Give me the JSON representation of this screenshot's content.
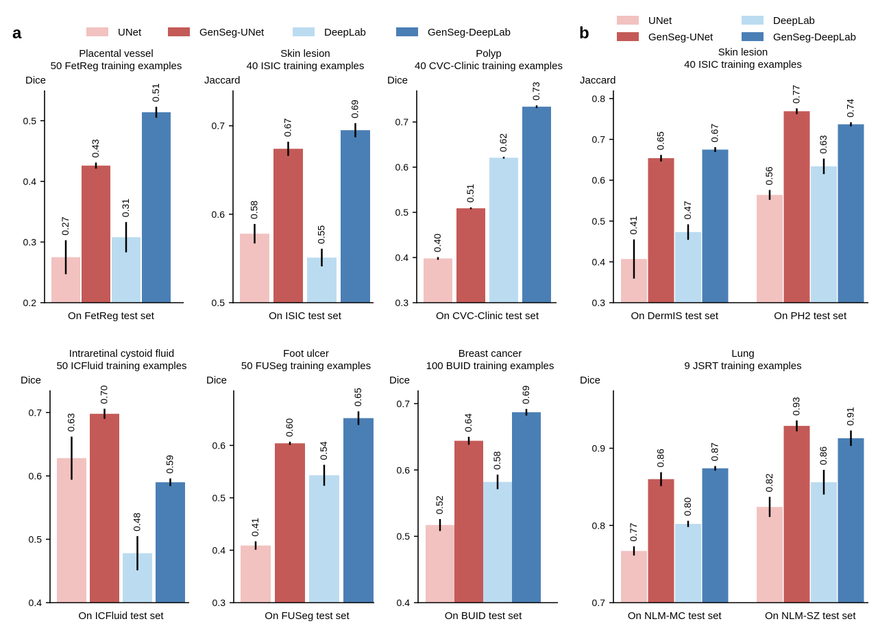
{
  "colors": {
    "UNet": "#f2c2c0",
    "GenSeg-UNet": "#c45a57",
    "DeepLab": "#bbdcf0",
    "GenSeg-DeepLab": "#4a7fb5",
    "axis": "#000000",
    "errorbar": "#000000"
  },
  "panel_letters": [
    "a",
    "b"
  ],
  "legends": [
    {
      "panel": "a",
      "layout": "single-row",
      "entries": [
        "UNet",
        "GenSeg-UNet",
        "DeepLab",
        "GenSeg-DeepLab"
      ]
    },
    {
      "panel": "b",
      "layout": "two-columns",
      "entries": [
        "UNet",
        "GenSeg-UNet",
        "DeepLab",
        "GenSeg-DeepLab"
      ]
    }
  ],
  "chart_data": [
    {
      "type": "bar",
      "title": "Placental vessel\n50 FetReg training examples",
      "ylabel": "Dice",
      "ylim": [
        0.2,
        0.55
      ],
      "yticks": [
        0.2,
        0.3,
        0.4,
        0.5
      ],
      "groups": [
        {
          "xlabel": "On FetReg test set",
          "bars": [
            {
              "series": "UNet",
              "value": 0.275,
              "err": 0.028,
              "label": "0.27"
            },
            {
              "series": "GenSeg-UNet",
              "value": 0.426,
              "err": 0.005,
              "label": "0.43"
            },
            {
              "series": "DeepLab",
              "value": 0.308,
              "err": 0.025,
              "label": "0.31"
            },
            {
              "series": "GenSeg-DeepLab",
              "value": 0.514,
              "err": 0.009,
              "label": "0.51"
            }
          ]
        }
      ]
    },
    {
      "type": "bar",
      "title": "Skin lesion\n40 ISIC training examples",
      "ylabel": "Jaccard",
      "ylim": [
        0.5,
        0.74
      ],
      "yticks": [
        0.5,
        0.6,
        0.7
      ],
      "groups": [
        {
          "xlabel": "On ISIC test set",
          "bars": [
            {
              "series": "UNet",
              "value": 0.578,
              "err": 0.011,
              "label": "0.58"
            },
            {
              "series": "GenSeg-UNet",
              "value": 0.674,
              "err": 0.008,
              "label": "0.67"
            },
            {
              "series": "DeepLab",
              "value": 0.551,
              "err": 0.01,
              "label": "0.55"
            },
            {
              "series": "GenSeg-DeepLab",
              "value": 0.695,
              "err": 0.008,
              "label": "0.69"
            }
          ]
        }
      ]
    },
    {
      "type": "bar",
      "title": "Polyp\n40 CVC-Clinic training examples",
      "ylabel": "Dice",
      "ylim": [
        0.3,
        0.77
      ],
      "yticks": [
        0.3,
        0.4,
        0.5,
        0.6,
        0.7
      ],
      "groups": [
        {
          "xlabel": "On CVC-Clinic test set",
          "bars": [
            {
              "series": "UNet",
              "value": 0.398,
              "err": 0.003,
              "label": "0.40"
            },
            {
              "series": "GenSeg-UNet",
              "value": 0.509,
              "err": 0.002,
              "label": "0.51"
            },
            {
              "series": "DeepLab",
              "value": 0.621,
              "err": 0.002,
              "label": "0.62"
            },
            {
              "series": "GenSeg-DeepLab",
              "value": 0.734,
              "err": 0.003,
              "label": "0.73"
            }
          ]
        }
      ]
    },
    {
      "type": "bar",
      "title": "Skin lesion\n40 ISIC training examples",
      "ylabel": "Jaccard",
      "ylim": [
        0.3,
        0.82
      ],
      "yticks": [
        0.3,
        0.4,
        0.5,
        0.6,
        0.7,
        0.8
      ],
      "groups": [
        {
          "xlabel": "On DermIS test set",
          "bars": [
            {
              "series": "UNet",
              "value": 0.407,
              "err": 0.048,
              "label": "0.41"
            },
            {
              "series": "GenSeg-UNet",
              "value": 0.654,
              "err": 0.008,
              "label": "0.65"
            },
            {
              "series": "DeepLab",
              "value": 0.473,
              "err": 0.019,
              "label": "0.47"
            },
            {
              "series": "GenSeg-DeepLab",
              "value": 0.675,
              "err": 0.006,
              "label": "0.67"
            }
          ]
        },
        {
          "xlabel": "On PH2 test set",
          "bars": [
            {
              "series": "UNet",
              "value": 0.564,
              "err": 0.012,
              "label": "0.56"
            },
            {
              "series": "GenSeg-UNet",
              "value": 0.769,
              "err": 0.007,
              "label": "0.77"
            },
            {
              "series": "DeepLab",
              "value": 0.634,
              "err": 0.019,
              "label": "0.63"
            },
            {
              "series": "GenSeg-DeepLab",
              "value": 0.737,
              "err": 0.005,
              "label": "0.74"
            }
          ]
        }
      ]
    },
    {
      "type": "bar",
      "title": "Intraretinal cystoid fluid\n50 ICFluid training examples",
      "ylabel": "Dice",
      "ylim": [
        0.4,
        0.735
      ],
      "yticks": [
        0.4,
        0.5,
        0.6,
        0.7
      ],
      "groups": [
        {
          "xlabel": "On ICFluid test set",
          "bars": [
            {
              "series": "UNet",
              "value": 0.628,
              "err": 0.034,
              "label": "0.63"
            },
            {
              "series": "GenSeg-UNet",
              "value": 0.698,
              "err": 0.008,
              "label": "0.70"
            },
            {
              "series": "DeepLab",
              "value": 0.478,
              "err": 0.027,
              "label": "0.48"
            },
            {
              "series": "GenSeg-DeepLab",
              "value": 0.59,
              "err": 0.006,
              "label": "0.59"
            }
          ]
        }
      ]
    },
    {
      "type": "bar",
      "title": "Foot ulcer\n50 FUSeg training examples",
      "ylabel": "Dice",
      "ylim": [
        0.3,
        0.705
      ],
      "yticks": [
        0.3,
        0.4,
        0.5,
        0.6
      ],
      "groups": [
        {
          "xlabel": "On FUSeg test set",
          "bars": [
            {
              "series": "UNet",
              "value": 0.409,
              "err": 0.008,
              "label": "0.41"
            },
            {
              "series": "GenSeg-UNet",
              "value": 0.604,
              "err": 0.003,
              "label": "0.60"
            },
            {
              "series": "DeepLab",
              "value": 0.543,
              "err": 0.02,
              "label": "0.54"
            },
            {
              "series": "GenSeg-DeepLab",
              "value": 0.652,
              "err": 0.013,
              "label": "0.65"
            }
          ]
        }
      ]
    },
    {
      "type": "bar",
      "title": "Breast cancer\n100 BUID training examples",
      "ylabel": "Dice",
      "ylim": [
        0.4,
        0.72
      ],
      "yticks": [
        0.4,
        0.5,
        0.6,
        0.7
      ],
      "groups": [
        {
          "xlabel": "On BUID test set",
          "bars": [
            {
              "series": "UNet",
              "value": 0.517,
              "err": 0.009,
              "label": "0.52"
            },
            {
              "series": "GenSeg-UNet",
              "value": 0.644,
              "err": 0.006,
              "label": "0.64"
            },
            {
              "series": "DeepLab",
              "value": 0.582,
              "err": 0.011,
              "label": "0.58"
            },
            {
              "series": "GenSeg-DeepLab",
              "value": 0.687,
              "err": 0.005,
              "label": "0.69"
            }
          ]
        }
      ]
    },
    {
      "type": "bar",
      "title": "Lung\n9 JSRT training examples",
      "ylabel": "Dice",
      "ylim": [
        0.7,
        0.975
      ],
      "yticks": [
        0.7,
        0.8,
        0.9
      ],
      "groups": [
        {
          "xlabel": "On NLM-MC test set",
          "bars": [
            {
              "series": "UNet",
              "value": 0.767,
              "err": 0.006,
              "label": "0.77"
            },
            {
              "series": "GenSeg-UNet",
              "value": 0.86,
              "err": 0.009,
              "label": "0.86"
            },
            {
              "series": "DeepLab",
              "value": 0.802,
              "err": 0.004,
              "label": "0.80"
            },
            {
              "series": "GenSeg-DeepLab",
              "value": 0.874,
              "err": 0.003,
              "label": "0.87"
            }
          ]
        },
        {
          "xlabel": "On NLM-SZ test set",
          "bars": [
            {
              "series": "UNet",
              "value": 0.824,
              "err": 0.013,
              "label": "0.82"
            },
            {
              "series": "GenSeg-UNet",
              "value": 0.929,
              "err": 0.007,
              "label": "0.93"
            },
            {
              "series": "DeepLab",
              "value": 0.856,
              "err": 0.016,
              "label": "0.86"
            },
            {
              "series": "GenSeg-DeepLab",
              "value": 0.913,
              "err": 0.01,
              "label": "0.91"
            }
          ]
        }
      ]
    }
  ]
}
